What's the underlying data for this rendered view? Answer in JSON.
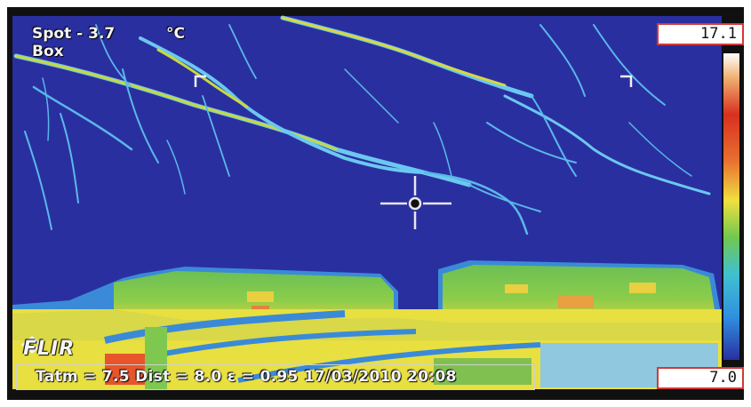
{
  "spot": {
    "label": "Spot - 3.7",
    "unit": "°C"
  },
  "box_label": "Box",
  "brand": "FLIR",
  "status_bar": "Tatm = 7.5  Dist = 8.0  ε = 0.95  17/03/2010 20:08",
  "scale": {
    "max": "17.1",
    "min": "7.0"
  },
  "colors": {
    "sky": "#2a2fa0",
    "branch": "#63c4f0",
    "building": "#7ec850",
    "hot": "#f0e040",
    "warm": "#e85a2a"
  },
  "icons": {
    "crosshair": "crosshair-icon",
    "box_corner": "box-corner-icon",
    "logo": "flir-logo-icon"
  }
}
